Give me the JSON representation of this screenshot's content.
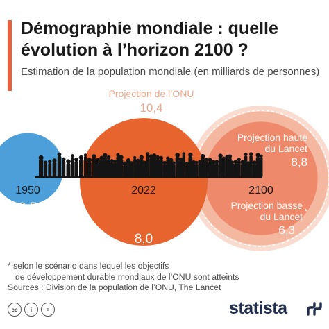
{
  "title": "Démographie mondiale : quelle évolution à l’horizon 2100 ?",
  "subtitle": "Estimation de la population mondiale (en milliards de personnes)",
  "colors": {
    "accent": "#e8603c",
    "blue": "#4d9fd9",
    "orange_dark": "#e8642f",
    "orange_medium": "#ee8a6b",
    "peach_light": "#f9dccf",
    "navy_brand": "#1f2e4d"
  },
  "chart_data": {
    "type": "bubble",
    "title": "Démographie mondiale : quelle évolution à l’horizon 2100 ?",
    "unit": "milliards de personnes",
    "points": [
      {
        "year": "1950",
        "value": 2.5,
        "value_label": "2,5",
        "color": "#4d9fd9"
      },
      {
        "year": "2022",
        "value": 8.0,
        "value_label": "8,0",
        "color": "#e8642f"
      }
    ],
    "projections_2100": [
      {
        "year": "2100",
        "label": "Projection de l’ONU",
        "value": 10.4,
        "value_label": "10,4",
        "note": "",
        "color": "#f9dccf"
      },
      {
        "year": "2100",
        "label": "Projection haute du Lancet",
        "value": 8.8,
        "value_label": "8,8",
        "note": "",
        "color": "#f3b49c"
      },
      {
        "year": "2100",
        "label": "Projection basse du Lancet",
        "value": 6.3,
        "value_label": "6,3",
        "note": "*",
        "color": "#ee8a6b"
      }
    ]
  },
  "footnote": {
    "line1": "* selon le scénario dans lequel les objectifs",
    "line2": "de développement durable mondiaux de l’ONU sont atteints",
    "sources": "Sources : Division de la population de l’ONU, The Lancet"
  },
  "footer": {
    "brand": "statista",
    "license_icons": [
      "cc-icon",
      "attribution-icon",
      "no-derivatives-icon"
    ],
    "license_glyphs": [
      "cc",
      "i",
      "="
    ]
  }
}
